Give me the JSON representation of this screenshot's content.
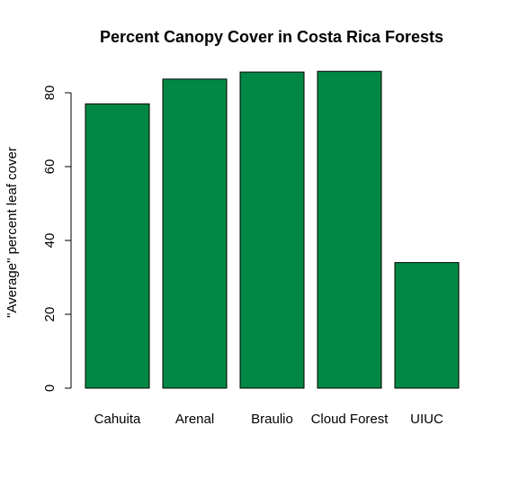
{
  "chart_data": {
    "type": "bar",
    "title": "Percent Canopy Cover in Costa Rica Forests",
    "xlabel": "",
    "ylabel": "\"Average\" percent leaf cover",
    "categories": [
      "Cahuita",
      "Arenal",
      "Braulio",
      "Cloud Forest",
      "UIUC"
    ],
    "values": [
      77,
      83.7,
      85.6,
      85.8,
      34
    ],
    "yticks": [
      "0",
      "20",
      "40",
      "60",
      "80"
    ],
    "ylim": [
      0,
      85.8
    ],
    "grid": false,
    "bar_color": "#008844",
    "bar_edge_color": "#000000"
  }
}
